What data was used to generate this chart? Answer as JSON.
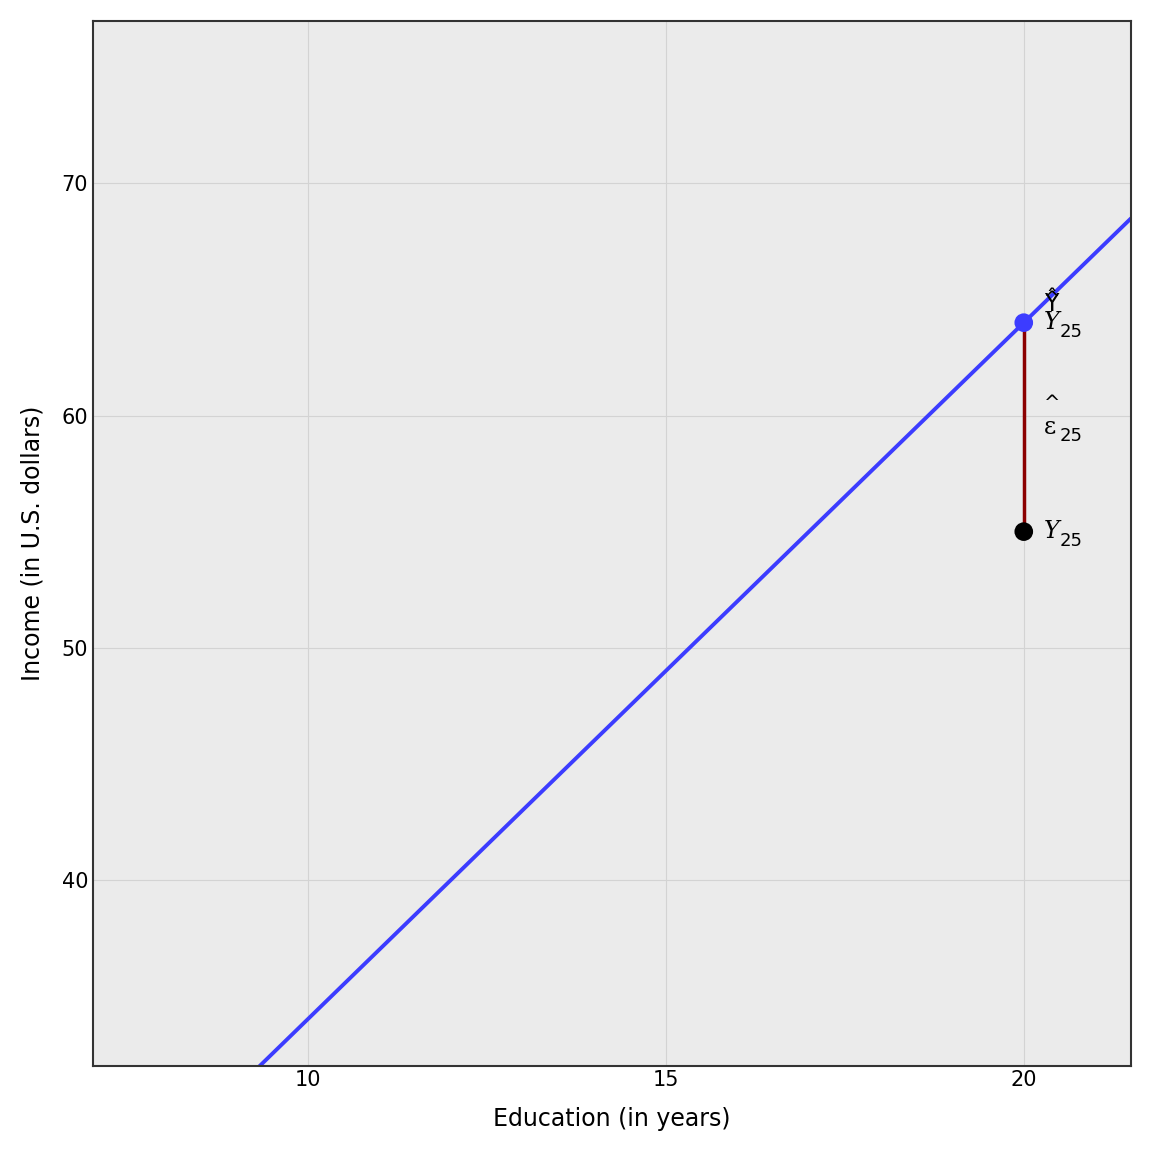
{
  "title": "",
  "xlabel": "Education (in years)",
  "ylabel": "Income (in U.S. dollars)",
  "xlim": [
    7,
    21.5
  ],
  "ylim": [
    32,
    77
  ],
  "xticks": [
    10,
    15,
    20
  ],
  "yticks": [
    40,
    50,
    60,
    70
  ],
  "regression_slope": 3.0,
  "regression_intercept": 4.0,
  "x_line_start": 7,
  "x_line_end": 21.5,
  "point_x25": 20,
  "fitted_y25": 64.0,
  "observed_y25": 55.0,
  "line_color": "#3c3cff",
  "fitted_point_color": "#3c3cff",
  "observed_point_color": "#000000",
  "residual_line_color": "#8b0000",
  "point_size": 180,
  "line_width": 2.8,
  "residual_lw": 2.5,
  "background_color": "#ffffff",
  "grid_color": "#d3d3d3",
  "panel_bg": "#ebebeb",
  "axis_label_fontsize": 17,
  "tick_fontsize": 15,
  "annotation_fontsize": 17
}
